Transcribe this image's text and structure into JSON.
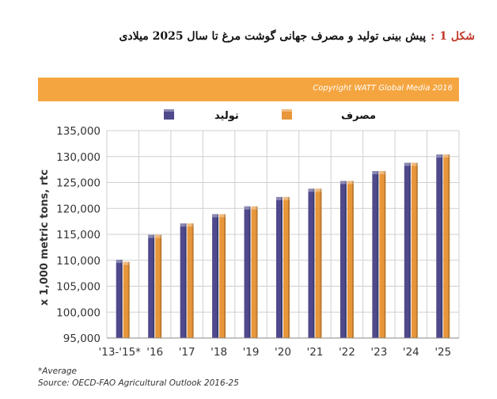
{
  "figure": {
    "label": "شکل 1",
    "separator": ":",
    "title": "پیش بینی تولید و مصرف جهانی گوشت مرغ تا سال 2025 میلادی"
  },
  "banner": {
    "text": "Copyright WATT Global Media 2016"
  },
  "footnotes": {
    "note": "*Average",
    "source": "Source: OECD-FAO Agricultural Outlook 2016-25"
  },
  "colors": {
    "production": "#4e4a8c",
    "consumption": "#e8963a",
    "banner": "#f5a540",
    "grid": "#cfcfcf"
  },
  "chart_data": {
    "type": "bar",
    "title": "",
    "xlabel": "",
    "ylabel": "x 1,000 metric tons, rtc",
    "categories": [
      "'13-'15*",
      "'16",
      "'17",
      "'18",
      "'19",
      "'20",
      "'21",
      "'22",
      "'23",
      "'24",
      "'25"
    ],
    "series": [
      {
        "name": "تولید",
        "values": [
          110100,
          114900,
          117100,
          118900,
          120400,
          122200,
          123800,
          125300,
          127200,
          128800,
          130400
        ]
      },
      {
        "name": "مصرف",
        "values": [
          109700,
          114900,
          117100,
          118900,
          120400,
          122200,
          123800,
          125300,
          127200,
          128800,
          130400
        ]
      }
    ],
    "yticks": [
      "95,000",
      "100,000",
      "105,000",
      "110,000",
      "115,000",
      "120,000",
      "125,000",
      "130,000",
      "135,000"
    ],
    "ylim": [
      95000,
      135000
    ],
    "grid": true,
    "legend_position": "top"
  }
}
